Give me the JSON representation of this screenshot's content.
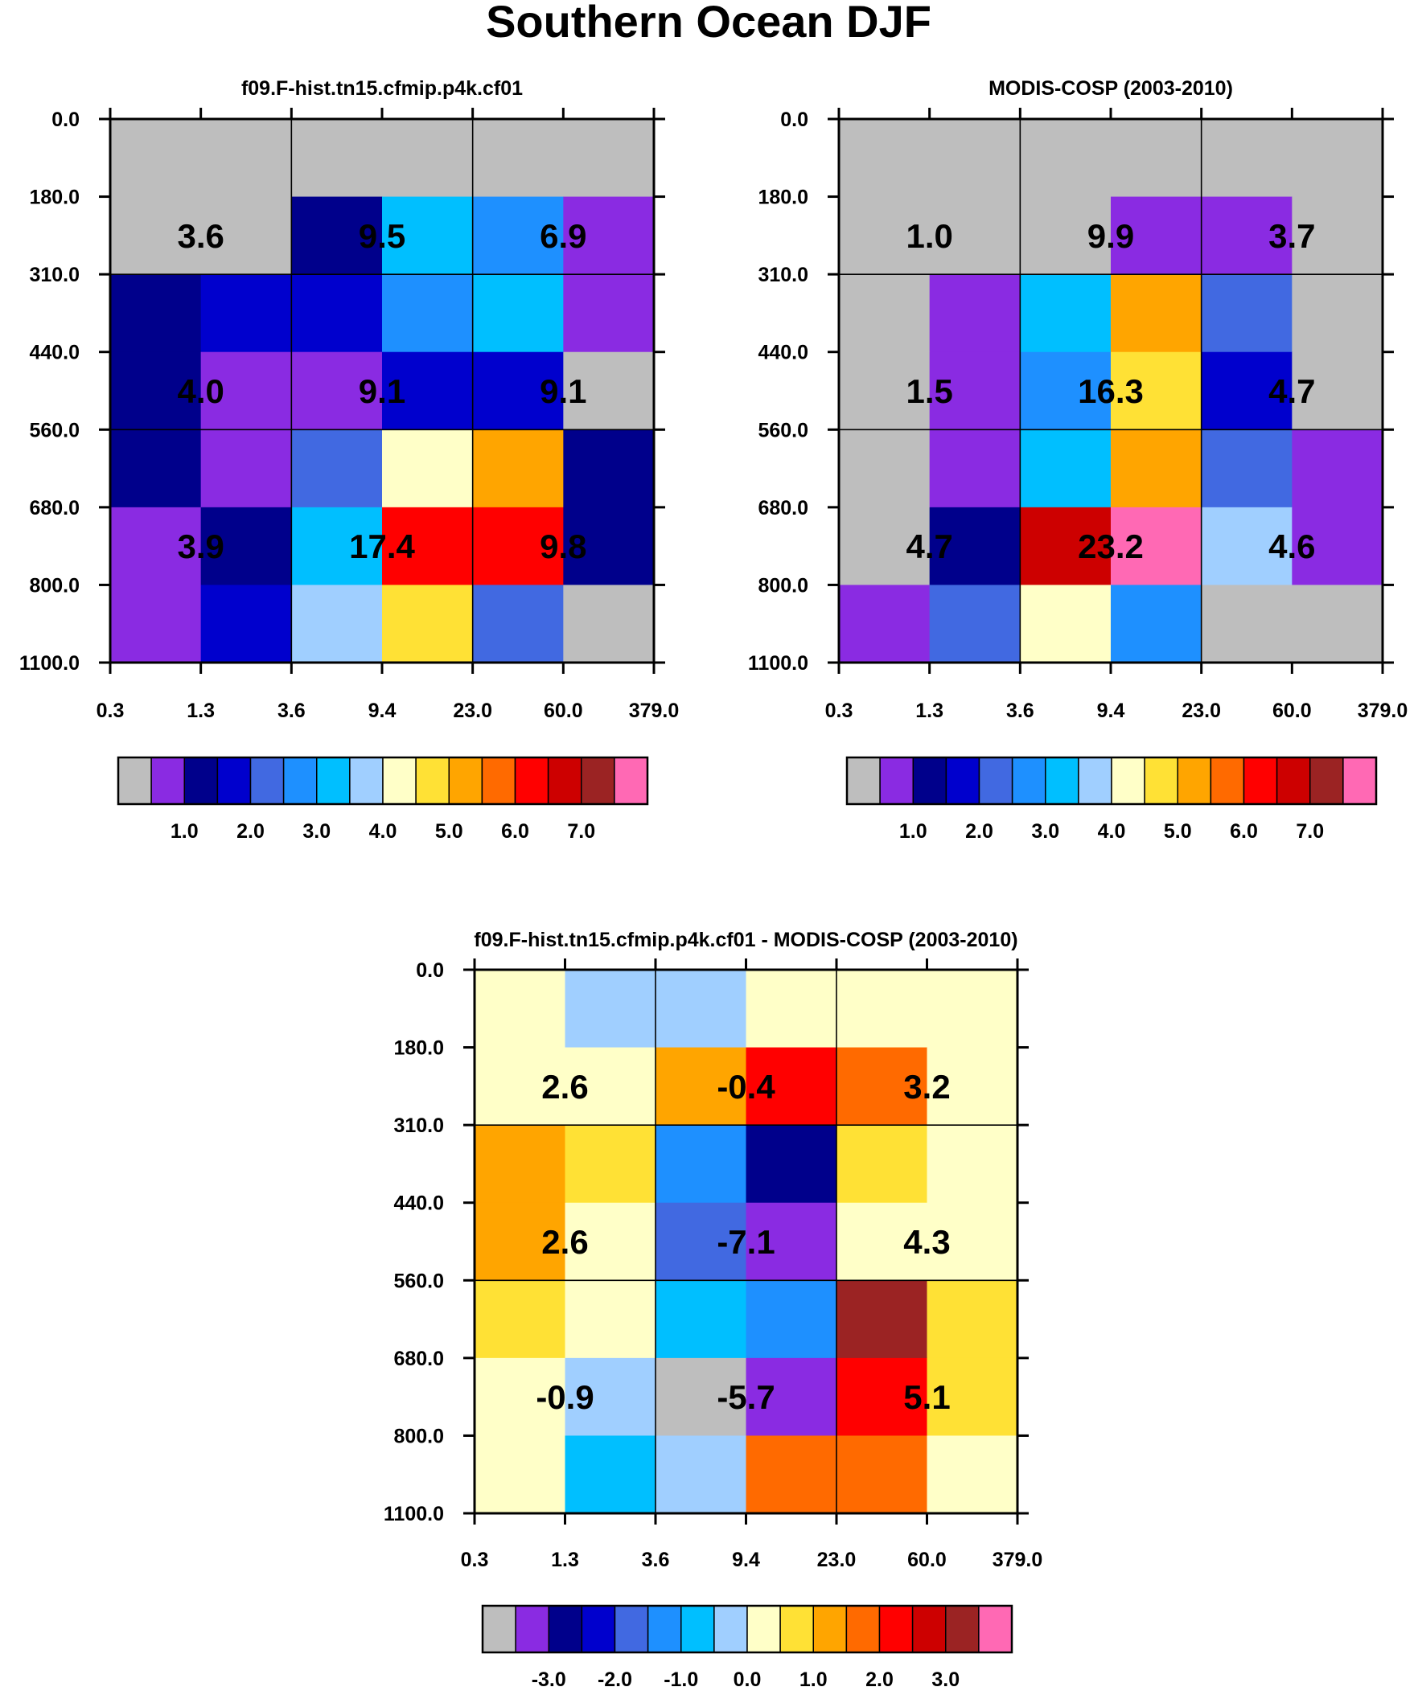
{
  "figure_title": "Southern Ocean DJF",
  "colors": {
    "palette": [
      "#bebebe",
      "#8a2be2",
      "#00008b",
      "#0000cd",
      "#4169e1",
      "#1e90ff",
      "#00bfff",
      "#a0cfff",
      "#ffffc8",
      "#ffe135",
      "#ffa500",
      "#ff6a00",
      "#ff0000",
      "#cd0000",
      "#9b2323",
      "#ff69b4"
    ]
  },
  "chart_data": [
    {
      "type": "heatmap",
      "title": "f09.F-hist.tn15.cfmip.p4k.cf01",
      "x_ticks": [
        "0.3",
        "1.3",
        "3.6",
        "9.4",
        "23.0",
        "60.0",
        "379.0"
      ],
      "y_ticks": [
        "0.0",
        "180.0",
        "310.0",
        "440.0",
        "560.0",
        "680.0",
        "800.0",
        "1100.0"
      ],
      "cell_color_index": [
        [
          0,
          0,
          0,
          0,
          0,
          0
        ],
        [
          0,
          0,
          2,
          6,
          5,
          1
        ],
        [
          2,
          3,
          3,
          5,
          6,
          1
        ],
        [
          2,
          1,
          1,
          3,
          3,
          0
        ],
        [
          2,
          1,
          4,
          8,
          10,
          2
        ],
        [
          1,
          2,
          6,
          12,
          12,
          2
        ],
        [
          1,
          3,
          7,
          9,
          4,
          0
        ]
      ],
      "box_values": [
        [
          "3.6",
          "9.5",
          "6.9"
        ],
        [
          "4.0",
          "9.1",
          "9.1"
        ],
        [
          "3.9",
          "17.4",
          "9.8"
        ]
      ],
      "colorbar_labels": [
        "1.0",
        "2.0",
        "3.0",
        "4.0",
        "5.0",
        "6.0",
        "7.0"
      ]
    },
    {
      "type": "heatmap",
      "title": "MODIS-COSP (2003-2010)",
      "x_ticks": [
        "0.3",
        "1.3",
        "3.6",
        "9.4",
        "23.0",
        "60.0",
        "379.0"
      ],
      "y_ticks": [
        "0.0",
        "180.0",
        "310.0",
        "440.0",
        "560.0",
        "680.0",
        "800.0",
        "1100.0"
      ],
      "cell_color_index": [
        [
          0,
          0,
          0,
          0,
          0,
          0
        ],
        [
          0,
          0,
          0,
          1,
          1,
          0
        ],
        [
          0,
          1,
          6,
          10,
          4,
          0
        ],
        [
          0,
          1,
          5,
          9,
          3,
          0
        ],
        [
          0,
          1,
          6,
          10,
          4,
          1
        ],
        [
          0,
          2,
          13,
          15,
          7,
          1
        ],
        [
          1,
          4,
          8,
          5,
          0,
          0
        ]
      ],
      "box_values": [
        [
          "1.0",
          "9.9",
          "3.7"
        ],
        [
          "1.5",
          "16.3",
          "4.7"
        ],
        [
          "4.7",
          "23.2",
          "4.6"
        ]
      ],
      "colorbar_labels": [
        "1.0",
        "2.0",
        "3.0",
        "4.0",
        "5.0",
        "6.0",
        "7.0"
      ]
    },
    {
      "type": "heatmap",
      "title": "f09.F-hist.tn15.cfmip.p4k.cf01 - MODIS-COSP (2003-2010)",
      "x_ticks": [
        "0.3",
        "1.3",
        "3.6",
        "9.4",
        "23.0",
        "60.0",
        "379.0"
      ],
      "y_ticks": [
        "0.0",
        "180.0",
        "310.0",
        "440.0",
        "560.0",
        "680.0",
        "800.0",
        "1100.0"
      ],
      "cell_color_index": [
        [
          8,
          7,
          7,
          8,
          8,
          8
        ],
        [
          8,
          8,
          10,
          12,
          11,
          8
        ],
        [
          10,
          9,
          5,
          2,
          9,
          8
        ],
        [
          10,
          8,
          4,
          1,
          8,
          8
        ],
        [
          9,
          8,
          6,
          5,
          14,
          9
        ],
        [
          8,
          7,
          0,
          1,
          12,
          9
        ],
        [
          8,
          6,
          7,
          11,
          11,
          8
        ]
      ],
      "box_values": [
        [
          "2.6",
          "-0.4",
          "3.2"
        ],
        [
          "2.6",
          "-7.1",
          "4.3"
        ],
        [
          "-0.9",
          "-5.7",
          "5.1"
        ]
      ],
      "colorbar_labels": [
        "-3.0",
        "-2.0",
        "-1.0",
        "0.0",
        "1.0",
        "2.0",
        "3.0"
      ]
    }
  ]
}
